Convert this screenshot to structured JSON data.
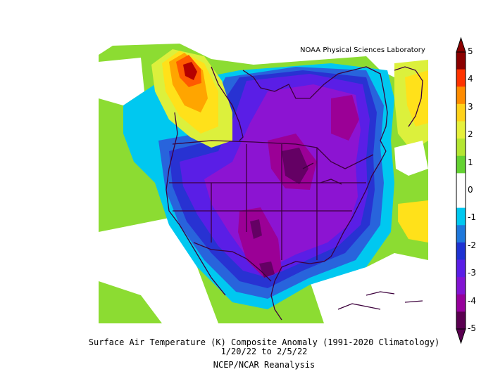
{
  "credit": "NOAA Physical Sciences Laboratory",
  "caption": {
    "line1": "Surface Air Temperature (K) Composite Anomaly (1991-2020 Climatology)",
    "line2": "1/20/22  to 2/5/22",
    "line3": "NCEP/NCAR Reanalysis"
  },
  "colorbar": {
    "labels": [
      "5",
      "4",
      "3",
      "2",
      "1",
      "0",
      "-1",
      "-2",
      "-3",
      "-4",
      "-5"
    ],
    "colors": [
      "#8b0000",
      "#ff3300",
      "#ff8c00",
      "#ffd21a",
      "#e6f03c",
      "#b4e632",
      "#64d232",
      "#ffffff",
      "#ffffff",
      "#00c8f0",
      "#1e78dc",
      "#1e32d2",
      "#5a1ee6",
      "#8214d2",
      "#96009b",
      "#5a0050"
    ]
  },
  "colors": {
    "dark_red": "#b40000",
    "red_orange": "#ff5a00",
    "orange": "#ffa500",
    "yellow": "#ffe11a",
    "yellow_green": "#dcf03c",
    "green": "#8cdc32",
    "bright_green": "#64d232",
    "cyan": "#00c8f0",
    "blue": "#2864dc",
    "deep_blue": "#2832d2",
    "indigo": "#5a1ee6",
    "purple": "#8c14d2",
    "magenta_purple": "#9b0096",
    "dark_purple": "#640064",
    "coast": "#3c003c"
  }
}
